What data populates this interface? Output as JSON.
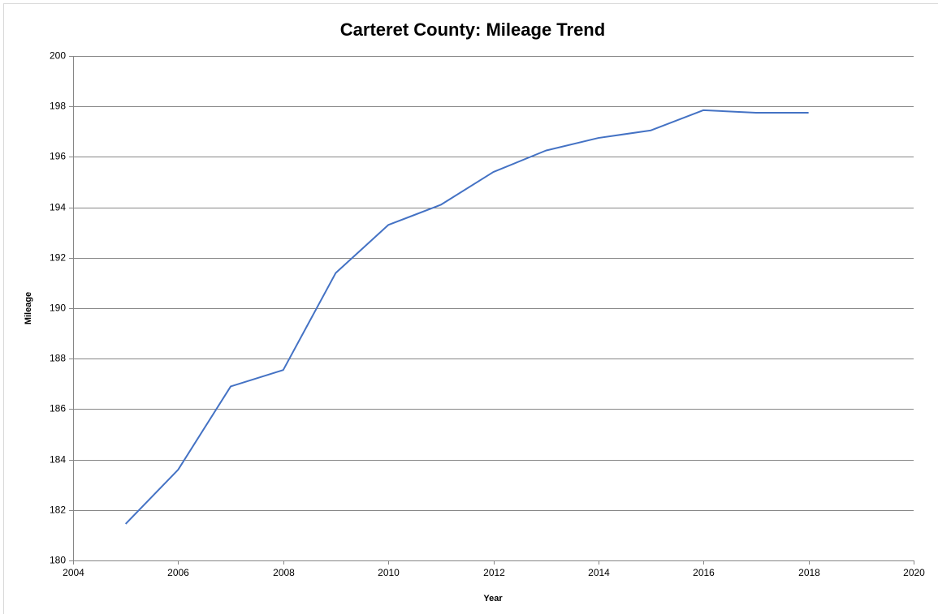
{
  "chart_data": {
    "type": "line",
    "title": "Carteret County: Mileage Trend",
    "x_label": "Year",
    "y_label": "Mileage",
    "x": [
      2005,
      2006,
      2007,
      2008,
      2009,
      2010,
      2011,
      2012,
      2013,
      2014,
      2015,
      2016,
      2017,
      2018
    ],
    "values": [
      181.45,
      183.6,
      186.9,
      187.55,
      191.4,
      193.3,
      194.1,
      195.4,
      196.25,
      196.75,
      197.05,
      197.85,
      197.75,
      197.75
    ],
    "color": "#4472c4",
    "xlim": [
      2004,
      2020
    ],
    "xticks": [
      2004,
      2006,
      2008,
      2010,
      2012,
      2014,
      2016,
      2018,
      2020
    ],
    "ylim": [
      180,
      200
    ],
    "yticks": [
      180,
      182,
      184,
      186,
      188,
      190,
      192,
      194,
      196,
      198,
      200
    ],
    "grid": true
  }
}
